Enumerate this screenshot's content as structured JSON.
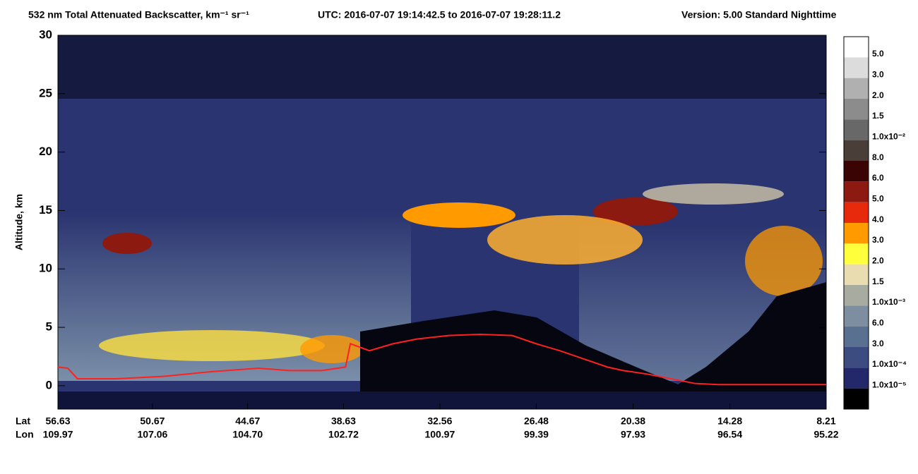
{
  "chart_data": {
    "type": "curtain",
    "title": "532 nm Total Attenuated Backscatter, km⁻¹ sr⁻¹",
    "subtitle": "UTC:  2016-07-07 19:14:42.5  to  2016-07-07 19:28:11.2",
    "version": "Version: 5.00  Standard  Nighttime",
    "y_label": "Altitude, km",
    "x_row_labels": [
      "Lat",
      "Lon"
    ],
    "ylim": [
      -2,
      30
    ],
    "yticks": [
      0,
      5,
      10,
      15,
      20,
      25,
      30
    ],
    "xlim": [
      56.63,
      8.21
    ],
    "xticks": [
      56.63,
      50.67,
      44.67,
      38.63,
      32.56,
      26.48,
      20.38,
      14.28,
      8.21
    ],
    "lon_labels": [
      "109.97",
      "107.06",
      "104.70",
      "102.72",
      "100.97",
      "99.39",
      "97.93",
      "96.54",
      "95.22"
    ],
    "surface": {
      "color": "#ff2020",
      "x": [
        56.63,
        56.0,
        55.4,
        53.0,
        50.0,
        47.0,
        44.0,
        42.0,
        40.0,
        39.0,
        38.5,
        38.2,
        37.0,
        35.5,
        34.0,
        32.0,
        30.0,
        28.0,
        26.5,
        25.0,
        23.5,
        22.0,
        21.0,
        19.5,
        18.0,
        16.5,
        15.0,
        12.0,
        8.21
      ],
      "values": [
        1.6,
        1.5,
        0.6,
        0.6,
        0.8,
        1.2,
        1.5,
        1.3,
        1.3,
        1.5,
        1.6,
        3.6,
        3.0,
        3.6,
        4.0,
        4.3,
        4.4,
        4.3,
        3.6,
        3.0,
        2.3,
        1.6,
        1.3,
        1.0,
        0.6,
        0.2,
        0.1,
        0.1,
        0.1
      ]
    },
    "colorbar": {
      "labels": [
        "5.0",
        "3.0",
        "2.0",
        "1.5",
        "1.0x10⁻²",
        "8.0",
        "6.0",
        "5.0",
        "4.0",
        "3.0",
        "2.0",
        "1.5",
        "1.0x10⁻³",
        "6.0",
        "3.0",
        "1.0x10⁻⁴",
        "1.0x10⁻⁵"
      ],
      "colors": [
        "#ffffff",
        "#dcdcdc",
        "#b0b0b0",
        "#8c8c8c",
        "#686868",
        "#4a3e38",
        "#3a0404",
        "#8c1a10",
        "#e82a0c",
        "#ff9a00",
        "#ffff3c",
        "#e8dcb0",
        "#a8aca0",
        "#7c8ea0",
        "#5a7090",
        "#3c4c80",
        "#22286a",
        "#000000"
      ]
    }
  }
}
